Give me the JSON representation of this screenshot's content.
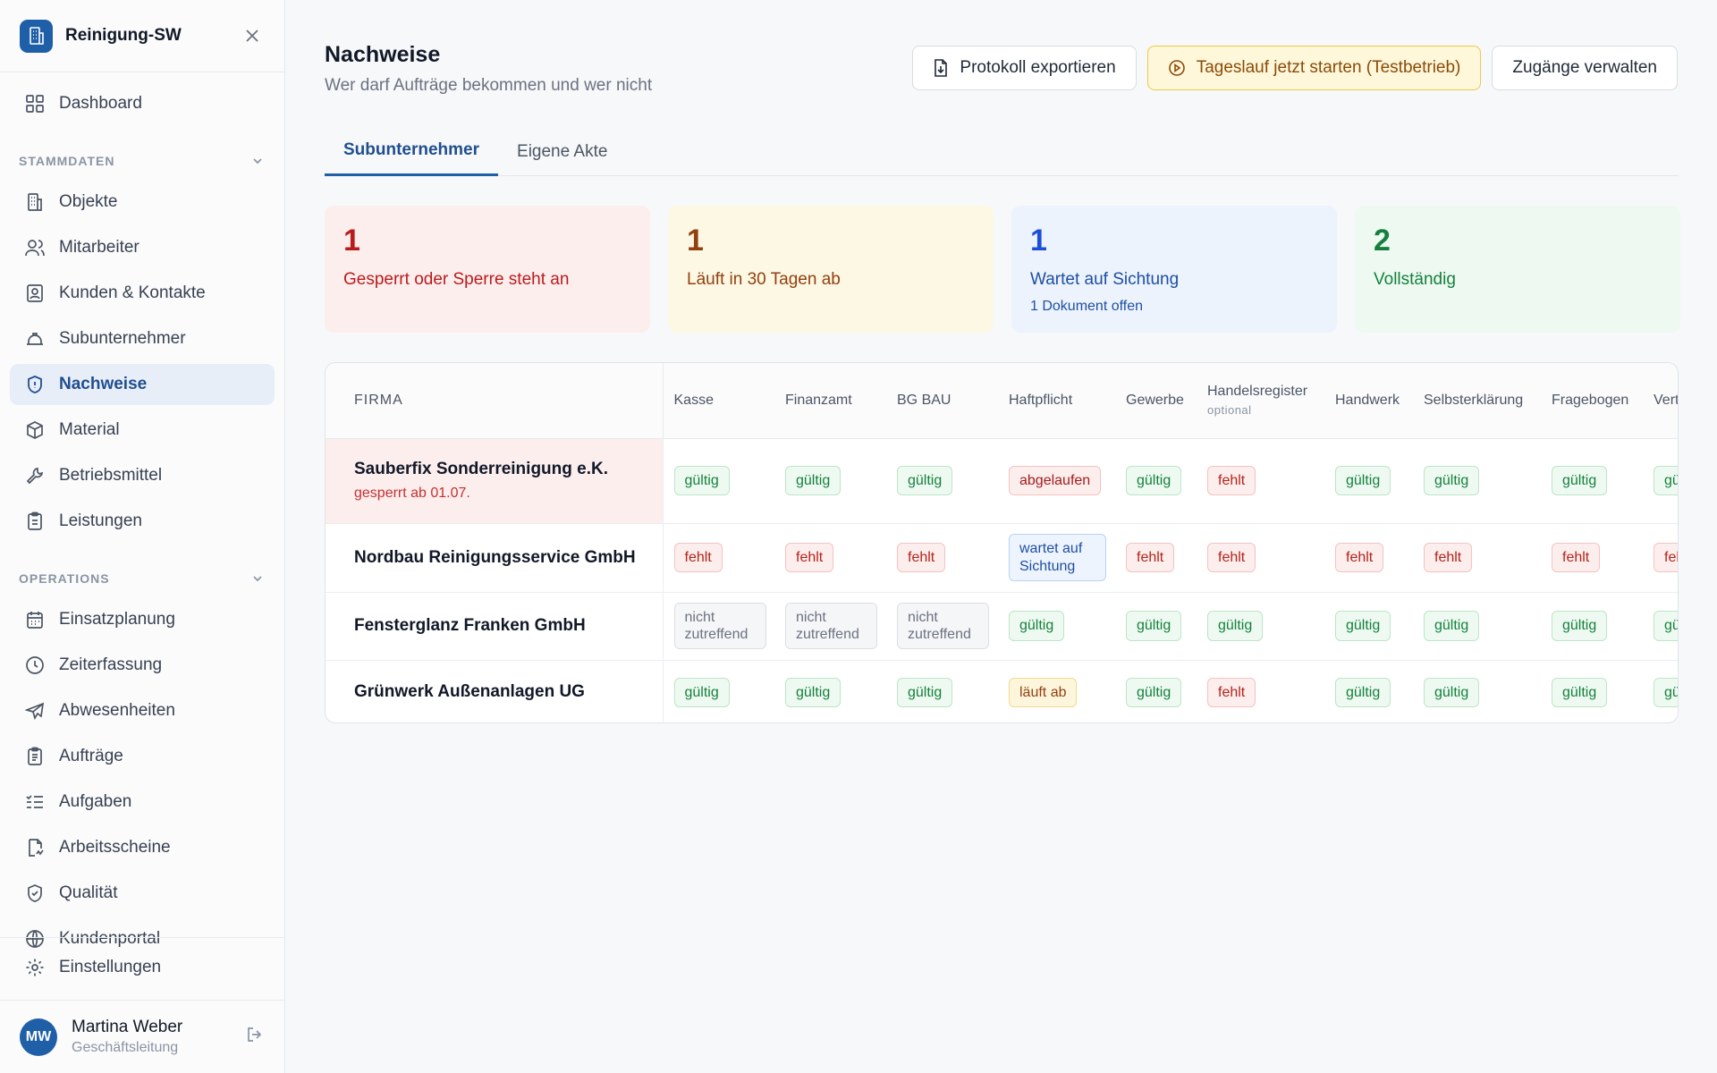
{
  "app": {
    "name": "Reinigung-SW"
  },
  "sidebar": {
    "dashboard": "Dashboard",
    "section_stammdaten": "STAMMDATEN",
    "stammdaten_items": [
      {
        "label": "Objekte",
        "icon": "building-icon"
      },
      {
        "label": "Mitarbeiter",
        "icon": "users-icon"
      },
      {
        "label": "Kunden & Kontakte",
        "icon": "contact-book-icon"
      },
      {
        "label": "Subunternehmer",
        "icon": "hard-hat-icon"
      },
      {
        "label": "Nachweise",
        "icon": "shield-icon",
        "active": true
      },
      {
        "label": "Material",
        "icon": "box-icon"
      },
      {
        "label": "Betriebsmittel",
        "icon": "wrench-icon"
      },
      {
        "label": "Leistungen",
        "icon": "clipboard-icon"
      }
    ],
    "section_operations": "OPERATIONS",
    "operations_items": [
      {
        "label": "Einsatzplanung",
        "icon": "calendar-icon"
      },
      {
        "label": "Zeiterfassung",
        "icon": "clock-icon"
      },
      {
        "label": "Abwesenheiten",
        "icon": "plane-icon"
      },
      {
        "label": "Aufträge",
        "icon": "clipboard-list-icon"
      },
      {
        "label": "Aufgaben",
        "icon": "list-check-icon"
      },
      {
        "label": "Arbeitsscheine",
        "icon": "file-signature-icon"
      },
      {
        "label": "Qualität",
        "icon": "shield-check-icon"
      },
      {
        "label": "Kundenportal",
        "icon": "globe-icon"
      }
    ],
    "settings": "Einstellungen",
    "user": {
      "initials": "MW",
      "name": "Martina Weber",
      "role": "Geschäftsleitung"
    }
  },
  "header": {
    "title": "Nachweise",
    "subtitle": "Wer darf Aufträge bekommen und wer nicht",
    "export_label": "Protokoll exportieren",
    "run_label": "Tageslauf jetzt starten (Testbetrieb)",
    "access_label": "Zugänge verwalten"
  },
  "tabs": [
    "Subunternehmer",
    "Eigene Akte"
  ],
  "stats": [
    {
      "value": "1",
      "label": "Gesperrt oder Sperre steht an",
      "sub": ""
    },
    {
      "value": "1",
      "label": "Läuft in 30 Tagen ab",
      "sub": ""
    },
    {
      "value": "1",
      "label": "Wartet auf Sichtung",
      "sub": "1 Dokument offen"
    },
    {
      "value": "2",
      "label": "Vollständig",
      "sub": ""
    }
  ],
  "table": {
    "firma_header": "FIRMA",
    "columns": [
      "Kasse",
      "Finanzamt",
      "BG BAU",
      "Haftpflicht",
      "Gewerbe",
      "Handelsregister",
      "Handwerk",
      "Selbsterklärung",
      "Fragebogen",
      "Vert"
    ],
    "optional_note": "optional",
    "rows": [
      {
        "company": "Sauberfix Sonderreinigung e.K.",
        "note": "gesperrt ab 01.07.",
        "cells": [
          "gültig",
          "gültig",
          "gültig",
          "abgelaufen",
          "gültig",
          "fehlt",
          "gültig",
          "gültig",
          "gültig",
          "gü"
        ],
        "kinds": [
          "ok",
          "ok",
          "ok",
          "exp",
          "ok",
          "miss",
          "ok",
          "ok",
          "ok",
          "ok"
        ]
      },
      {
        "company": "Nordbau Reinigungsservice GmbH",
        "note": "",
        "cells": [
          "fehlt",
          "fehlt",
          "fehlt",
          "wartet auf Sichtung",
          "fehlt",
          "fehlt",
          "fehlt",
          "fehlt",
          "fehlt",
          "feh"
        ],
        "kinds": [
          "miss",
          "miss",
          "miss",
          "wait",
          "miss",
          "miss",
          "miss",
          "miss",
          "miss",
          "miss"
        ]
      },
      {
        "company": "Fensterglanz Franken GmbH",
        "note": "",
        "cells": [
          "nicht zutreffend",
          "nicht zutreffend",
          "nicht zutreffend",
          "gültig",
          "gültig",
          "gültig",
          "gültig",
          "gültig",
          "gültig",
          "gü"
        ],
        "kinds": [
          "na",
          "na",
          "na",
          "ok",
          "ok",
          "ok",
          "ok",
          "ok",
          "ok",
          "ok"
        ]
      },
      {
        "company": "Grünwerk Außenanlagen UG",
        "note": "",
        "cells": [
          "gültig",
          "gültig",
          "gültig",
          "läuft ab",
          "gültig",
          "fehlt",
          "gültig",
          "gültig",
          "gültig",
          "gü"
        ],
        "kinds": [
          "ok",
          "ok",
          "ok",
          "soon",
          "ok",
          "miss",
          "ok",
          "ok",
          "ok",
          "ok"
        ]
      }
    ]
  },
  "colors": {
    "brand": "#1f5fa8",
    "valid": "#15803d",
    "missing": "#b42318",
    "warning": "#92400e",
    "pending": "#1e4fa3"
  }
}
